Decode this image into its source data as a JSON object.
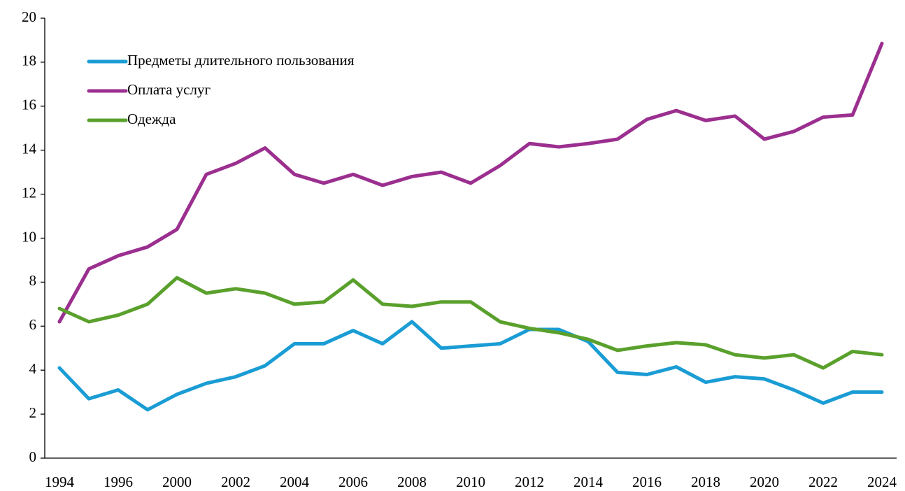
{
  "chart_data": {
    "type": "line",
    "categories": [
      "1994",
      null,
      "1996",
      null,
      "2000",
      null,
      "2002",
      null,
      "2004",
      null,
      "2006",
      null,
      "2008",
      null,
      "2010",
      null,
      "2012",
      null,
      "2014",
      null,
      "2016",
      null,
      "2018",
      null,
      "2020",
      null,
      "2022",
      null,
      "2024"
    ],
    "series": [
      {
        "name": "Предметы длительного пользования",
        "color": "#1a9cd4",
        "values": [
          4.1,
          2.7,
          3.1,
          2.2,
          2.9,
          3.4,
          3.7,
          4.2,
          5.2,
          5.2,
          5.8,
          5.2,
          6.2,
          5.0,
          5.1,
          5.2,
          5.85,
          5.85,
          5.3,
          3.9,
          3.8,
          4.15,
          3.45,
          3.7,
          3.6,
          3.1,
          2.5,
          3.0,
          3.0
        ]
      },
      {
        "name": "Оплата услуг",
        "color": "#9b2f8f",
        "values": [
          6.2,
          8.6,
          9.2,
          9.6,
          10.4,
          12.9,
          13.4,
          14.1,
          12.9,
          12.5,
          12.9,
          12.4,
          12.8,
          13.0,
          12.5,
          13.3,
          14.3,
          14.15,
          14.3,
          14.5,
          15.4,
          15.8,
          15.35,
          15.55,
          14.5,
          14.85,
          15.5,
          15.6,
          18.85
        ]
      },
      {
        "name": "Одежда",
        "color": "#5aa02c",
        "values": [
          6.8,
          6.2,
          6.5,
          7.0,
          8.2,
          7.5,
          7.7,
          7.5,
          7.0,
          7.1,
          8.1,
          7.0,
          6.9,
          7.1,
          7.1,
          6.2,
          5.9,
          5.7,
          5.4,
          4.9,
          5.1,
          5.25,
          5.15,
          4.7,
          4.55,
          4.7,
          4.1,
          4.85,
          4.7
        ]
      }
    ],
    "ylim": [
      0,
      20
    ],
    "yticks": [
      0,
      2,
      4,
      6,
      8,
      10,
      12,
      14,
      16,
      18,
      20
    ]
  }
}
